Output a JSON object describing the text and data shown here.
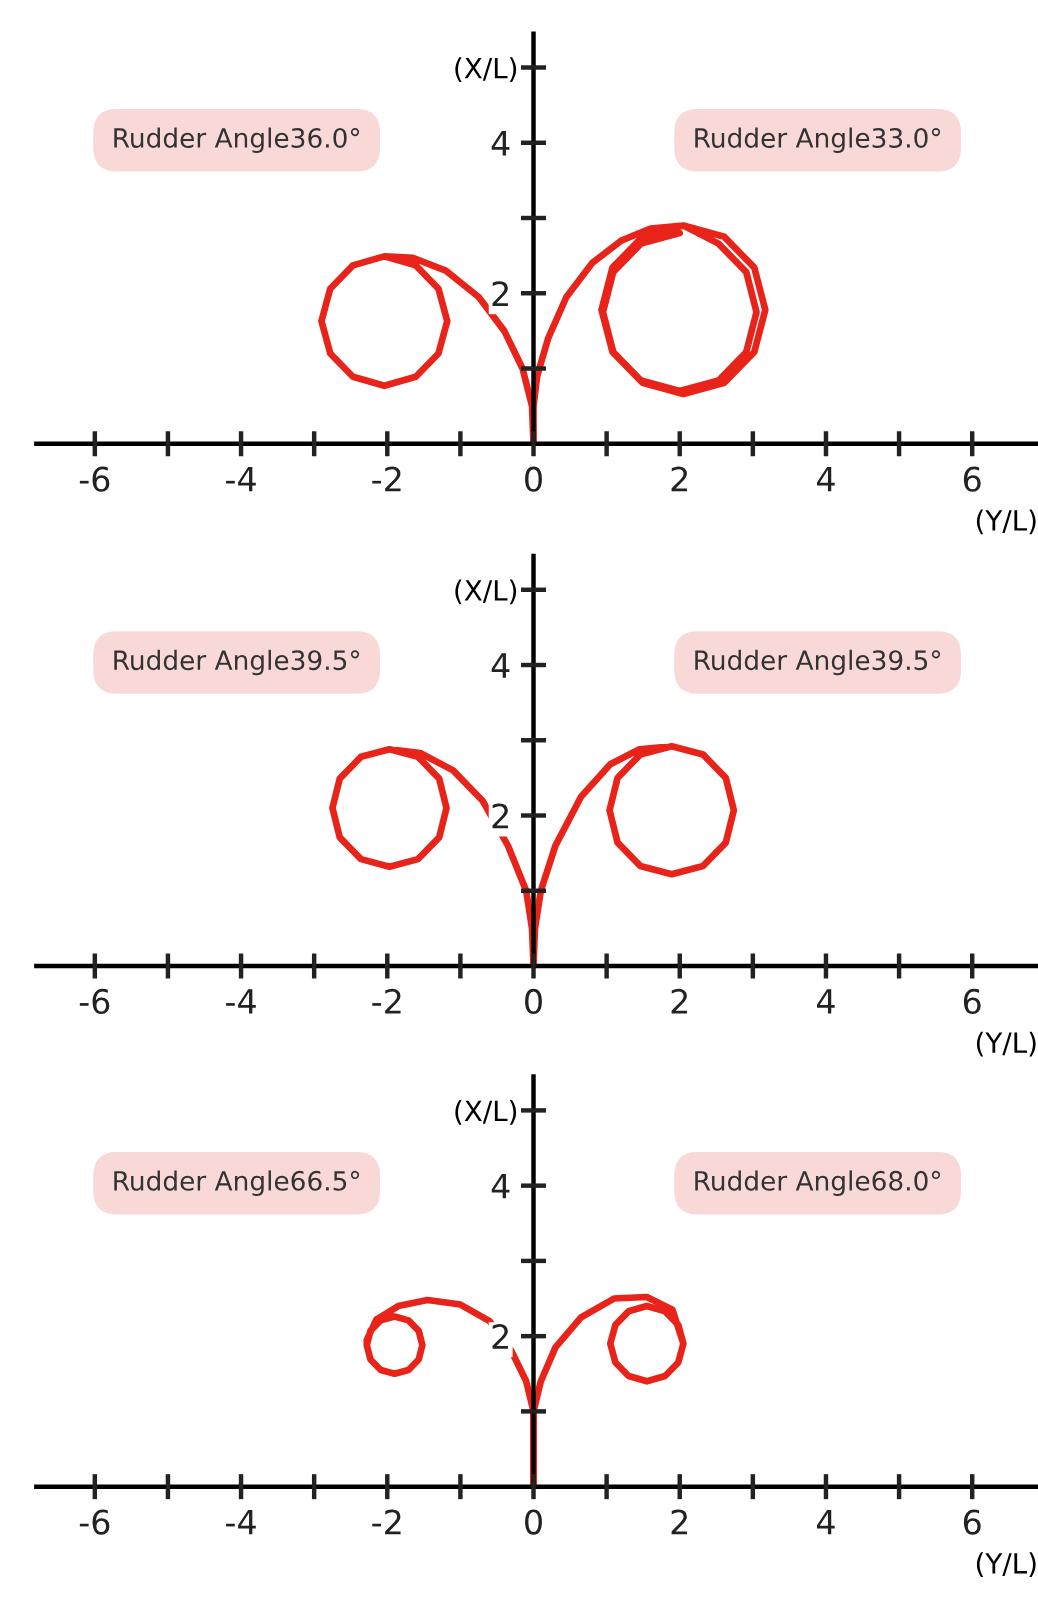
{
  "chart_data": [
    {
      "type": "line",
      "xlabel": "(Y/L)",
      "ylabel": "(X/L)",
      "xlim": [
        -6.8,
        6.9
      ],
      "ylim": [
        0,
        5.45
      ],
      "xticks": [
        -6,
        {
          "value": -5,
          "label": null
        },
        -4,
        {
          "value": -3,
          "label": null
        },
        -2,
        {
          "value": -1,
          "label": null
        },
        0,
        {
          "value": 1,
          "label": null
        },
        2,
        {
          "value": 3,
          "label": null
        },
        4,
        {
          "value": 5,
          "label": null
        },
        6
      ],
      "yticks": [
        {
          "value": 1,
          "label": null
        },
        2,
        {
          "value": 3,
          "label": null
        },
        4,
        {
          "value": 5,
          "label": null
        }
      ],
      "annotations": [
        "Rudder Angle36.0°",
        "Rudder Angle33.0°"
      ],
      "series": [
        {
          "color": "#e8231a",
          "x": [
            0,
            -0.02,
            -0.15,
            -0.4,
            -0.75,
            -1.2,
            -1.65,
            -2.04,
            -2.47,
            -2.78,
            -2.9,
            -2.78,
            -2.47,
            -2.04,
            -1.61,
            -1.3,
            -1.18,
            -1.3,
            -1.61,
            -2.04,
            -2.47
          ],
          "values": [
            0,
            0.5,
            1.0,
            1.5,
            1.95,
            2.3,
            2.47,
            2.49,
            2.37,
            2.06,
            1.63,
            1.2,
            0.89,
            0.77,
            0.89,
            1.2,
            1.63,
            2.06,
            2.37,
            2.49,
            2.37
          ]
        },
        {
          "color": "#e8231a",
          "x": [
            0,
            0,
            0.05,
            0.2,
            0.45,
            0.8,
            1.2,
            1.6,
            2.05,
            2.61,
            3.02,
            3.17,
            3.02,
            2.61,
            2.05,
            1.49,
            1.08,
            0.93,
            1.08,
            1.49,
            2.05,
            2.53,
            2.91,
            3.05,
            2.91,
            2.53,
            2.0,
            1.47,
            1.09,
            0.95,
            1.09,
            1.47,
            2.0
          ],
          "values": [
            0,
            0.5,
            0.9,
            1.4,
            1.95,
            2.4,
            2.7,
            2.86,
            2.9,
            2.75,
            2.34,
            1.78,
            1.22,
            0.81,
            0.66,
            0.81,
            1.22,
            1.78,
            2.34,
            2.75,
            2.9,
            2.66,
            2.28,
            1.75,
            1.22,
            0.84,
            0.7,
            0.84,
            1.22,
            1.75,
            2.28,
            2.66,
            2.8
          ]
        }
      ]
    },
    {
      "type": "line",
      "xlabel": "(Y/L)",
      "ylabel": "(X/L)",
      "xlim": [
        -6.8,
        6.9
      ],
      "ylim": [
        0,
        5.45
      ],
      "xticks": [
        -6,
        {
          "value": -5,
          "label": null
        },
        -4,
        {
          "value": -3,
          "label": null
        },
        -2,
        {
          "value": -1,
          "label": null
        },
        0,
        {
          "value": 1,
          "label": null
        },
        2,
        {
          "value": 3,
          "label": null
        },
        4,
        {
          "value": 5,
          "label": null
        },
        6
      ],
      "yticks": [
        {
          "value": 1,
          "label": null
        },
        2,
        {
          "value": 3,
          "label": null
        },
        4,
        {
          "value": 5,
          "label": null
        }
      ],
      "annotations": [
        "Rudder Angle39.5°",
        "Rudder Angle39.5°"
      ],
      "series": [
        {
          "color": "#e8231a",
          "x": [
            0,
            -0.02,
            -0.1,
            -0.35,
            -0.7,
            -1.1,
            -1.55,
            -1.97,
            -2.36,
            -2.65,
            -2.75,
            -2.65,
            -2.36,
            -1.97,
            -1.58,
            -1.29,
            -1.19,
            -1.29,
            -1.58,
            -1.97,
            -2.36
          ],
          "values": [
            0,
            0.5,
            1.0,
            1.6,
            2.2,
            2.6,
            2.83,
            2.88,
            2.78,
            2.49,
            2.1,
            1.71,
            1.42,
            1.32,
            1.42,
            1.71,
            2.1,
            2.49,
            2.78,
            2.88,
            2.78
          ]
        },
        {
          "color": "#e8231a",
          "x": [
            0,
            0.02,
            0.1,
            0.3,
            0.65,
            1.05,
            1.45,
            1.89,
            2.32,
            2.63,
            2.74,
            2.63,
            2.32,
            1.89,
            1.46,
            1.15,
            1.04,
            1.15,
            1.46,
            1.89,
            2.32
          ],
          "values": [
            0,
            0.5,
            1.0,
            1.6,
            2.25,
            2.68,
            2.88,
            2.92,
            2.81,
            2.5,
            2.07,
            1.64,
            1.33,
            1.22,
            1.33,
            1.64,
            2.07,
            2.5,
            2.81,
            2.92,
            2.81
          ]
        }
      ]
    },
    {
      "type": "line",
      "xlabel": "(Y/L)",
      "ylabel": "(X/L)",
      "xlim": [
        -6.8,
        6.9
      ],
      "ylim": [
        0,
        5.45
      ],
      "xticks": [
        -6,
        {
          "value": -5,
          "label": null
        },
        -4,
        {
          "value": -3,
          "label": null
        },
        -2,
        {
          "value": -1,
          "label": null
        },
        0,
        {
          "value": 1,
          "label": null
        },
        2,
        {
          "value": 3,
          "label": null
        },
        4,
        {
          "value": 5,
          "label": null
        },
        6
      ],
      "yticks": [
        {
          "value": 1,
          "label": null
        },
        2,
        {
          "value": 3,
          "label": null
        },
        4,
        {
          "value": 5,
          "label": null
        }
      ],
      "annotations": [
        "Rudder Angle66.5°",
        "Rudder Angle68.0°"
      ],
      "series": [
        {
          "color": "#e8231a",
          "x": [
            0,
            0,
            0,
            -0.1,
            -0.3,
            -0.6,
            -1.0,
            -1.45,
            -1.85,
            -2.15,
            -2.28,
            -2.28,
            -2.23,
            -2.09,
            -1.9,
            -1.71,
            -1.57,
            -1.52,
            -1.57,
            -1.71,
            -1.9,
            -2.09,
            -2.23,
            -2.28
          ],
          "values": [
            0,
            0.6,
            1.0,
            1.4,
            1.8,
            2.2,
            2.42,
            2.48,
            2.4,
            2.22,
            1.95,
            1.88,
            1.69,
            1.55,
            1.5,
            1.55,
            1.69,
            1.88,
            2.07,
            2.21,
            2.26,
            2.21,
            2.07,
            1.88
          ]
        },
        {
          "color": "#e8231a",
          "x": [
            0,
            0,
            0,
            0.1,
            0.3,
            0.65,
            1.1,
            1.55,
            1.9,
            2.05,
            1.98,
            1.8,
            1.55,
            1.3,
            1.12,
            1.05,
            1.12,
            1.3,
            1.55,
            1.8,
            1.98,
            2.05
          ],
          "values": [
            0,
            0.6,
            1.0,
            1.4,
            1.85,
            2.25,
            2.5,
            2.52,
            2.35,
            1.9,
            1.65,
            1.47,
            1.4,
            1.47,
            1.65,
            1.9,
            2.15,
            2.33,
            2.4,
            2.33,
            2.15,
            1.9
          ]
        }
      ]
    }
  ]
}
